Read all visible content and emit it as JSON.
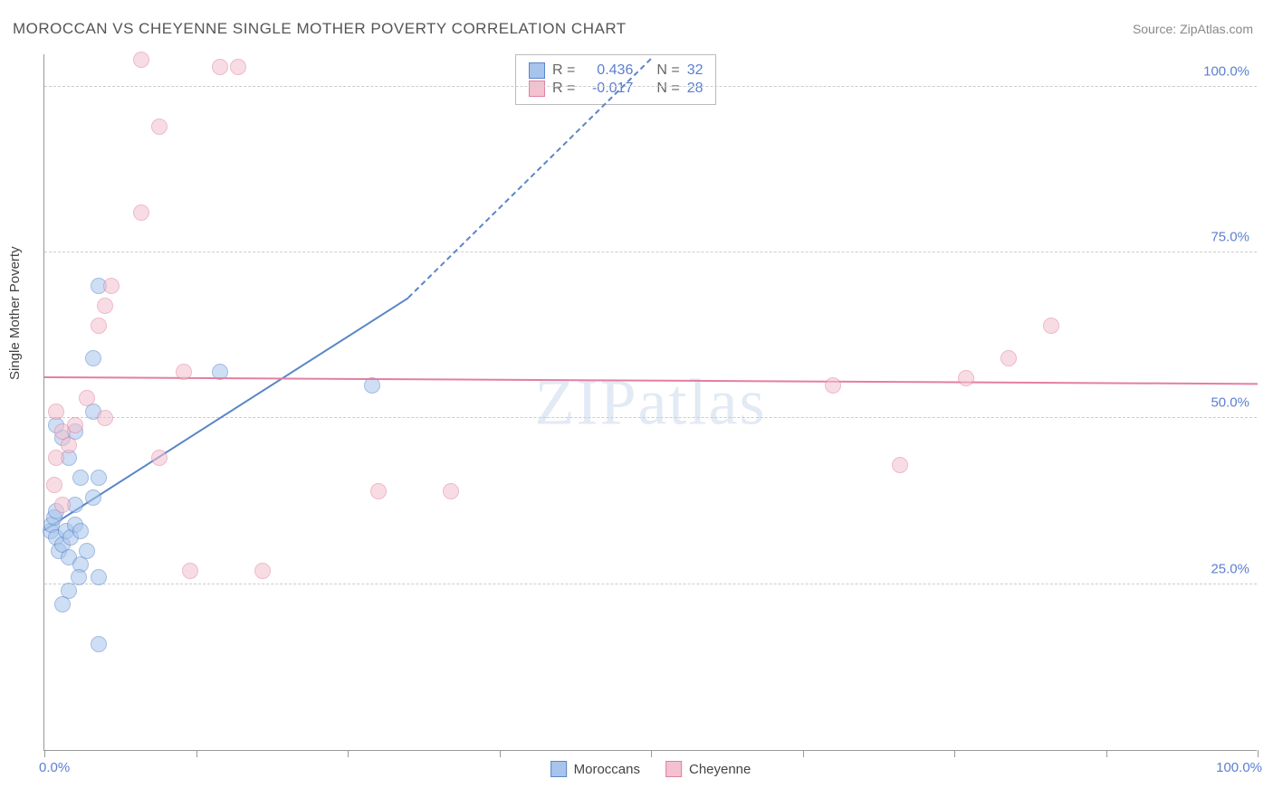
{
  "title": "MOROCCAN VS CHEYENNE SINGLE MOTHER POVERTY CORRELATION CHART",
  "source": "Source: ZipAtlas.com",
  "watermark": "ZIPatlas",
  "y_axis": {
    "label": "Single Mother Poverty",
    "ticks": [
      {
        "value": 25,
        "label": "25.0%"
      },
      {
        "value": 50,
        "label": "50.0%"
      },
      {
        "value": 75,
        "label": "75.0%"
      },
      {
        "value": 100,
        "label": "100.0%"
      }
    ]
  },
  "x_axis": {
    "min_label": "0.0%",
    "max_label": "100.0%",
    "tick_positions": [
      0,
      12.5,
      25,
      37.5,
      50,
      62.5,
      75,
      87.5,
      100
    ]
  },
  "chart": {
    "type": "scatter",
    "xlim": [
      0,
      100
    ],
    "ylim": [
      0,
      105
    ],
    "point_radius": 9,
    "point_opacity": 0.55,
    "background_color": "#ffffff",
    "grid_color": "#cccccc"
  },
  "series": [
    {
      "id": "moroccans",
      "label": "Moroccans",
      "color_fill": "#a7c4ec",
      "color_stroke": "#5a86c8",
      "r_value": "0.436",
      "n_value": "32",
      "trend": {
        "x1": 0,
        "y1": 33,
        "x2": 30,
        "y2": 68,
        "dashed_to_x": 50,
        "dashed_to_y": 104
      },
      "points": [
        {
          "x": 0.5,
          "y": 33
        },
        {
          "x": 0.6,
          "y": 34
        },
        {
          "x": 1.0,
          "y": 32
        },
        {
          "x": 1.2,
          "y": 30
        },
        {
          "x": 0.8,
          "y": 35
        },
        {
          "x": 1.5,
          "y": 31
        },
        {
          "x": 1.8,
          "y": 33
        },
        {
          "x": 2.0,
          "y": 29
        },
        {
          "x": 2.2,
          "y": 32
        },
        {
          "x": 2.5,
          "y": 34
        },
        {
          "x": 1.0,
          "y": 36
        },
        {
          "x": 3.0,
          "y": 28
        },
        {
          "x": 2.8,
          "y": 26
        },
        {
          "x": 2.0,
          "y": 24
        },
        {
          "x": 1.5,
          "y": 22
        },
        {
          "x": 4.5,
          "y": 26
        },
        {
          "x": 3.5,
          "y": 30
        },
        {
          "x": 3.0,
          "y": 33
        },
        {
          "x": 2.5,
          "y": 37
        },
        {
          "x": 4.0,
          "y": 38
        },
        {
          "x": 3.0,
          "y": 41
        },
        {
          "x": 4.5,
          "y": 41
        },
        {
          "x": 2.0,
          "y": 44
        },
        {
          "x": 1.5,
          "y": 47
        },
        {
          "x": 2.5,
          "y": 48
        },
        {
          "x": 1.0,
          "y": 49
        },
        {
          "x": 4.0,
          "y": 51
        },
        {
          "x": 4.0,
          "y": 59
        },
        {
          "x": 4.5,
          "y": 70
        },
        {
          "x": 14.5,
          "y": 57
        },
        {
          "x": 27.0,
          "y": 55
        },
        {
          "x": 4.5,
          "y": 16
        }
      ]
    },
    {
      "id": "cheyenne",
      "label": "Cheyenne",
      "color_fill": "#f3c1cf",
      "color_stroke": "#e37fa0",
      "r_value": "-0.017",
      "n_value": "28",
      "trend": {
        "x1": 0,
        "y1": 56,
        "x2": 100,
        "y2": 55
      },
      "points": [
        {
          "x": 0.8,
          "y": 40
        },
        {
          "x": 1.5,
          "y": 37
        },
        {
          "x": 1.0,
          "y": 44
        },
        {
          "x": 2.0,
          "y": 46
        },
        {
          "x": 1.5,
          "y": 48
        },
        {
          "x": 2.5,
          "y": 49
        },
        {
          "x": 1.0,
          "y": 51
        },
        {
          "x": 5.0,
          "y": 50
        },
        {
          "x": 3.5,
          "y": 53
        },
        {
          "x": 11.5,
          "y": 57
        },
        {
          "x": 4.5,
          "y": 64
        },
        {
          "x": 5.0,
          "y": 67
        },
        {
          "x": 5.5,
          "y": 70
        },
        {
          "x": 8.0,
          "y": 104
        },
        {
          "x": 14.5,
          "y": 103
        },
        {
          "x": 16.0,
          "y": 103
        },
        {
          "x": 9.5,
          "y": 94
        },
        {
          "x": 8.0,
          "y": 81
        },
        {
          "x": 9.5,
          "y": 44
        },
        {
          "x": 12.0,
          "y": 27
        },
        {
          "x": 18.0,
          "y": 27
        },
        {
          "x": 27.5,
          "y": 39
        },
        {
          "x": 33.5,
          "y": 39
        },
        {
          "x": 65.0,
          "y": 55
        },
        {
          "x": 70.5,
          "y": 43
        },
        {
          "x": 76.0,
          "y": 56
        },
        {
          "x": 79.5,
          "y": 59
        },
        {
          "x": 83.0,
          "y": 64
        }
      ]
    }
  ],
  "legend_bottom": [
    {
      "label": "Moroccans",
      "fill": "#a7c4ec",
      "stroke": "#5a86c8"
    },
    {
      "label": "Cheyenne",
      "fill": "#f3c1cf",
      "stroke": "#e37fa0"
    }
  ],
  "stats_legend": {
    "r_label": "R =",
    "n_label": "N ="
  }
}
